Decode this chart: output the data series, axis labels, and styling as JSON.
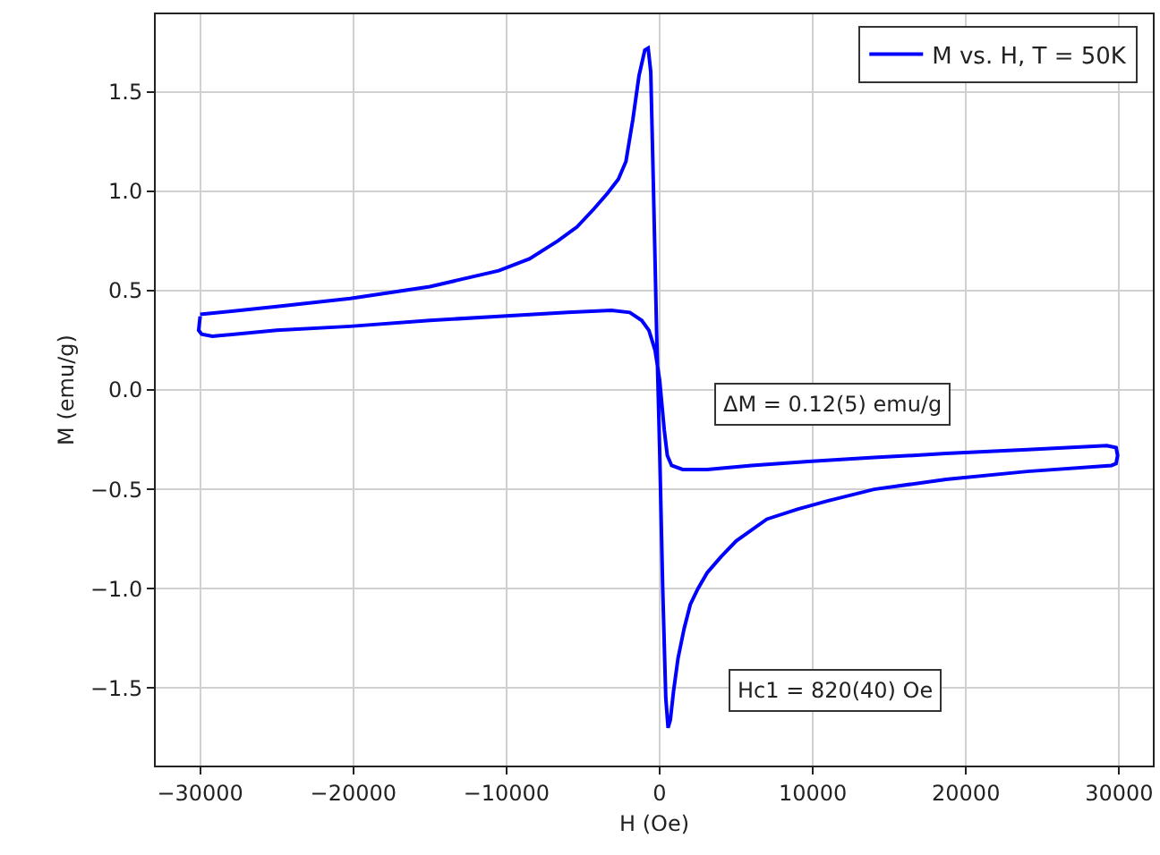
{
  "chart_data": {
    "type": "line",
    "xlabel": "H (Oe)",
    "ylabel": "M (emu/g)",
    "xlim": [
      -32900,
      32200
    ],
    "xticks": [
      {
        "value": -30000,
        "label": "−30000"
      },
      {
        "value": -20000,
        "label": "−20000"
      },
      {
        "value": -10000,
        "label": "−10000"
      },
      0,
      10000,
      20000,
      30000
    ],
    "ylim": [
      -1.89,
      1.89
    ],
    "yticks": [
      {
        "value": -1.5,
        "label": "−1.5"
      },
      {
        "value": -1,
        "label": "−1.0"
      },
      {
        "value": -0.5,
        "label": "−0.5"
      },
      {
        "value": 0,
        "label": "0.0"
      },
      0.5,
      {
        "value": 1,
        "label": "1.0"
      },
      1.5
    ],
    "grid": true,
    "legend": "top right",
    "line_style": "solid",
    "marker": "none",
    "annotations": [
      "ΔM = 0.12(5) emu/g",
      "Hc1 = 820(40) Oe"
    ],
    "series": [
      {
        "name": "M vs. H, T = 50K",
        "color": "#0000ff",
        "x": [
          -30000,
          -25000,
          -20200,
          -15000,
          -10500,
          -8500,
          -6650,
          -5400,
          -4300,
          -3400,
          -2700,
          -2200,
          -1750,
          -1350,
          -970,
          -750,
          -580,
          -400,
          -200,
          0,
          200,
          400,
          550,
          700,
          900,
          1200,
          1600,
          2000,
          2500,
          3100,
          4000,
          5000,
          7000,
          9000,
          10900,
          14000,
          18700,
          24000,
          29500,
          29800,
          29900,
          29800,
          29200,
          24000,
          18700,
          14000,
          9700,
          6000,
          3100,
          1500,
          780,
          500,
          300,
          0,
          -300,
          -700,
          -1170,
          -1950,
          -3150,
          -6000,
          -10500,
          -15000,
          -20200,
          -25000,
          -29200,
          -29900,
          -30100,
          -30000
        ],
        "values": [
          0.38,
          0.42,
          0.46,
          0.52,
          0.6,
          0.66,
          0.75,
          0.82,
          0.91,
          0.99,
          1.06,
          1.15,
          1.36,
          1.58,
          1.71,
          1.72,
          1.6,
          1.0,
          0.3,
          -0.3,
          -1.0,
          -1.55,
          -1.7,
          -1.66,
          -1.52,
          -1.35,
          -1.2,
          -1.08,
          -1.0,
          -0.92,
          -0.84,
          -0.76,
          -0.65,
          -0.6,
          -0.56,
          -0.5,
          -0.45,
          -0.41,
          -0.38,
          -0.37,
          -0.33,
          -0.29,
          -0.28,
          -0.3,
          -0.32,
          -0.34,
          -0.36,
          -0.38,
          -0.4,
          -0.4,
          -0.38,
          -0.33,
          -0.2,
          0.05,
          0.2,
          0.3,
          0.35,
          0.39,
          0.4,
          0.39,
          0.37,
          0.35,
          0.32,
          0.3,
          0.27,
          0.28,
          0.3,
          0.37
        ]
      }
    ]
  }
}
